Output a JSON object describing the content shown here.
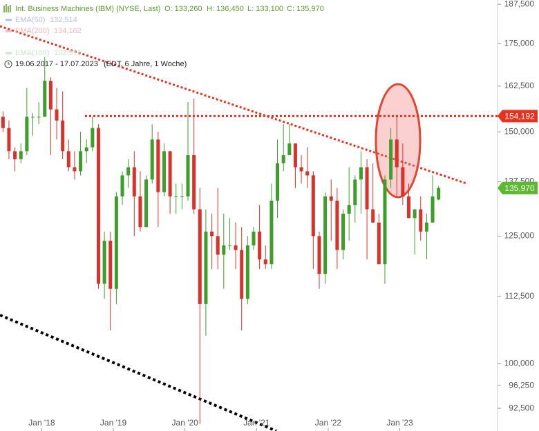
{
  "chart_data": {
    "type": "candlestick",
    "title": "Int. Business Machines (IBM) (NYSE, Last)",
    "quote": [
      "O: 133,260",
      "H: 136,450",
      "L: 133,100",
      "C: 135,970"
    ],
    "legend": [
      {
        "name": "EMA(50)",
        "value": "132,514",
        "color": "#b8bde8"
      },
      {
        "name": "EMA(200)",
        "value": "134,162",
        "color": "#f2b8b8"
      },
      {
        "name": "EMA(100)",
        "value": "132,971",
        "color": "#c8e8c8"
      }
    ],
    "range": "19.06.2017 - 17.07.2023",
    "range_note": "(EDT, 6 Jahre, 1 Woche)",
    "categories": [
      null,
      null,
      null,
      null,
      null,
      null,
      null,
      "Jan '18",
      null,
      null,
      null,
      null,
      null,
      null,
      null,
      null,
      null,
      null,
      null,
      "Jan '19",
      null,
      null,
      null,
      null,
      null,
      null,
      null,
      null,
      null,
      null,
      null,
      "Jan '20",
      null,
      null,
      null,
      null,
      null,
      null,
      null,
      null,
      null,
      null,
      null,
      "Jan '21",
      null,
      null,
      null,
      null,
      null,
      null,
      null,
      null,
      null,
      null,
      null,
      "Jan '22",
      null,
      null,
      null,
      null,
      null,
      null,
      null,
      null,
      null,
      null,
      null,
      "Jan '23",
      null,
      null,
      null,
      null,
      null,
      null
    ],
    "open": [
      154,
      151,
      145,
      143,
      145,
      154,
      154,
      154,
      164,
      156,
      153,
      145,
      141,
      140,
      145,
      146,
      151,
      115,
      124,
      114,
      134,
      139,
      141,
      134,
      127,
      138,
      148,
      135,
      145,
      134,
      134,
      134,
      144,
      131,
      111,
      126,
      125,
      121,
      123,
      123,
      122,
      112,
      123,
      126,
      120,
      119,
      133,
      142,
      144,
      147,
      141,
      140,
      139,
      125,
      117,
      134,
      133,
      122,
      130,
      132,
      138,
      141,
      131,
      128,
      119,
      138,
      148,
      141,
      134,
      129,
      131,
      126,
      128,
      133.26
    ],
    "high": [
      155.5,
      153,
      146,
      147,
      162,
      155,
      158,
      171,
      165,
      162,
      161,
      148,
      145,
      150,
      148,
      154,
      152,
      126,
      126,
      135,
      140,
      143,
      145,
      140,
      139,
      152,
      150,
      147,
      145,
      137,
      137,
      158,
      159,
      136,
      131,
      130,
      136,
      130,
      129,
      128,
      127,
      125,
      127,
      132,
      123,
      137,
      148,
      152,
      152,
      147,
      144,
      146,
      140,
      126,
      135,
      138,
      136,
      131,
      141,
      139,
      145,
      143,
      142,
      130,
      139,
      151,
      154,
      147,
      137,
      131,
      134,
      130,
      139,
      136.45
    ],
    "low": [
      150,
      143,
      140,
      142,
      144,
      149,
      152,
      154,
      144,
      148,
      143,
      140,
      138,
      139,
      142,
      145,
      114,
      112,
      106,
      111,
      132,
      136,
      125,
      126,
      127,
      137,
      127,
      134,
      130,
      130,
      131,
      133,
      130,
      90,
      105,
      118,
      118,
      114,
      122,
      118,
      106,
      111,
      122,
      118,
      118,
      118,
      129,
      140,
      144,
      136,
      137,
      136,
      118,
      114,
      115,
      124,
      118,
      120,
      124,
      128,
      130,
      120,
      128,
      119,
      115,
      136,
      134,
      132,
      129,
      121,
      124,
      120,
      128,
      133.1
    ],
    "close": [
      151,
      145,
      143,
      145,
      154,
      154,
      154,
      164,
      156,
      153,
      145,
      141,
      140,
      145,
      146,
      151,
      115,
      124,
      114,
      134,
      139,
      141,
      134,
      127,
      138,
      148,
      135,
      145,
      134,
      134,
      134,
      144,
      131,
      111,
      126,
      125,
      121,
      123,
      123,
      122,
      112,
      123,
      126,
      120,
      119,
      133,
      142,
      144,
      147,
      141,
      140,
      139,
      125,
      117,
      134,
      133,
      122,
      130,
      132,
      138,
      141,
      131,
      128,
      119,
      138,
      148,
      141,
      134,
      129,
      131,
      126,
      128,
      134,
      135.97
    ],
    "up_color": "#3d9e2c",
    "down_color": "#d8322a",
    "log_scale": true,
    "ylim": [
      88.9,
      188.9
    ],
    "yticks": [
      {
        "value": 92.5,
        "label": "92,500"
      },
      {
        "value": 96.25,
        "label": "96,250"
      },
      {
        "value": 100,
        "label": "100,000"
      },
      {
        "value": 112.5,
        "label": "112,500"
      },
      {
        "value": 125,
        "label": "125,000"
      },
      {
        "value": 137.5,
        "label": "137,500"
      },
      {
        "value": 150,
        "label": "150,000"
      },
      {
        "value": 162.5,
        "label": "162,500"
      },
      {
        "value": 175,
        "label": "175,000"
      },
      {
        "value": 187.5,
        "label": "187,500"
      }
    ],
    "markers": [
      {
        "value": 154.192,
        "label": "154,192",
        "color": "#e8321e"
      },
      {
        "value": 135.97,
        "label": "135,970",
        "color": "#5cb82f"
      }
    ]
  }
}
